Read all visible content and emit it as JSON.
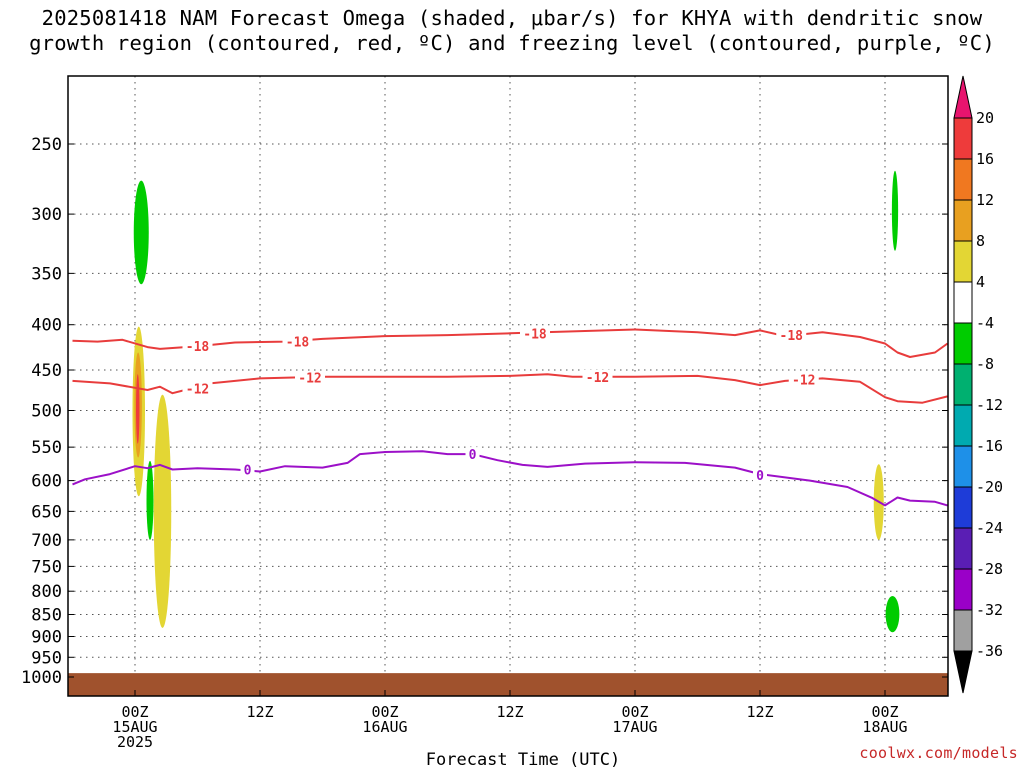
{
  "title_line1": "2025081418 NAM Forecast Omega (shaded, μbar/s) for KHYA with dendritic snow",
  "title_line2": "growth region (contoured, red, ºC) and freezing level (contoured, purple, ºC)",
  "credit": "coolwx.com/models",
  "chart_data": {
    "type": "contour",
    "xlabel": "Forecast Time (UTC)",
    "ylabel": "",
    "x_range_hours": [
      -5,
      65
    ],
    "y_axis": {
      "scale": "log-pressure",
      "units": "hPa",
      "range": [
        200,
        1000
      ],
      "ticks": [
        250,
        300,
        350,
        400,
        450,
        500,
        550,
        600,
        650,
        700,
        750,
        800,
        850,
        900,
        950,
        1000
      ]
    },
    "x_ticks": [
      {
        "hour": 0,
        "label": "00Z",
        "sub1": "15AUG",
        "sub2": "2025"
      },
      {
        "hour": 10,
        "label": "12Z",
        "sub1": "",
        "sub2": ""
      },
      {
        "hour": 20,
        "label": "00Z",
        "sub1": "16AUG",
        "sub2": ""
      },
      {
        "hour": 30,
        "label": "12Z",
        "sub1": "",
        "sub2": ""
      },
      {
        "hour": 40,
        "label": "00Z",
        "sub1": "17AUG",
        "sub2": ""
      },
      {
        "hour": 50,
        "label": "12Z",
        "sub1": "",
        "sub2": ""
      },
      {
        "hour": 60,
        "label": "00Z",
        "sub1": "18AUG",
        "sub2": ""
      }
    ],
    "grid": true,
    "colorbar": {
      "labels": [
        "20",
        "16",
        "12",
        "8",
        "4",
        "-4",
        "-8",
        "-12",
        "-16",
        "-20",
        "-24",
        "-28",
        "-32",
        "-36"
      ],
      "colors": [
        "#e8146e",
        "#ee3b3b",
        "#f07820",
        "#e8a020",
        "#e3d634",
        "#ffffff",
        "#00cc00",
        "#00b070",
        "#00aab0",
        "#1e90e8",
        "#1e3cd8",
        "#5a1eb4",
        "#9a00c8",
        "#a0a0a0",
        "#000000"
      ]
    },
    "contours": [
      {
        "label": "-18",
        "color": "#e83c3c",
        "points": [
          [
            -5,
            417
          ],
          [
            -3,
            418
          ],
          [
            -1,
            416
          ],
          [
            1,
            424
          ],
          [
            2,
            426
          ],
          [
            3,
            425
          ],
          [
            5,
            423
          ],
          [
            8,
            419
          ],
          [
            12,
            418
          ],
          [
            15,
            415
          ],
          [
            20,
            412
          ],
          [
            25,
            411
          ],
          [
            30,
            409
          ],
          [
            35,
            407
          ],
          [
            40,
            405
          ],
          [
            45,
            408
          ],
          [
            48,
            411
          ],
          [
            50,
            406
          ],
          [
            52,
            412
          ],
          [
            55,
            408
          ],
          [
            58,
            413
          ],
          [
            60,
            420
          ],
          [
            61,
            430
          ],
          [
            62,
            435
          ],
          [
            64,
            430
          ],
          [
            65,
            420
          ]
        ]
      },
      {
        "label": "-12",
        "color": "#e83c3c",
        "points": [
          [
            -5,
            463
          ],
          [
            -2,
            466
          ],
          [
            1,
            474
          ],
          [
            2,
            470
          ],
          [
            3,
            478
          ],
          [
            4,
            474
          ],
          [
            6,
            466
          ],
          [
            10,
            460
          ],
          [
            15,
            458
          ],
          [
            20,
            458
          ],
          [
            25,
            458
          ],
          [
            30,
            457
          ],
          [
            33,
            455
          ],
          [
            35,
            458
          ],
          [
            40,
            458
          ],
          [
            45,
            457
          ],
          [
            48,
            462
          ],
          [
            50,
            468
          ],
          [
            52,
            463
          ],
          [
            55,
            460
          ],
          [
            58,
            464
          ],
          [
            60,
            483
          ],
          [
            61,
            488
          ],
          [
            63,
            490
          ],
          [
            65,
            482
          ]
        ]
      },
      {
        "label": "0",
        "color": "#9c10c8",
        "points": [
          [
            -5,
            606
          ],
          [
            -4,
            598
          ],
          [
            -2,
            590
          ],
          [
            0,
            578
          ],
          [
            1,
            581
          ],
          [
            2,
            576
          ],
          [
            3,
            583
          ],
          [
            5,
            581
          ],
          [
            8,
            583
          ],
          [
            10,
            586
          ],
          [
            12,
            578
          ],
          [
            15,
            580
          ],
          [
            17,
            573
          ],
          [
            18,
            560
          ],
          [
            20,
            557
          ],
          [
            23,
            556
          ],
          [
            25,
            560
          ],
          [
            27,
            560
          ],
          [
            29,
            569
          ],
          [
            31,
            576
          ],
          [
            33,
            579
          ],
          [
            36,
            574
          ],
          [
            40,
            572
          ],
          [
            44,
            573
          ],
          [
            48,
            580
          ],
          [
            50,
            590
          ],
          [
            54,
            600
          ],
          [
            57,
            610
          ],
          [
            59,
            628
          ],
          [
            60,
            640
          ],
          [
            61,
            627
          ],
          [
            62,
            632
          ],
          [
            64,
            634
          ],
          [
            65,
            640
          ]
        ]
      },
      {
        "label": "",
        "color": "#8a4a24",
        "points": []
      }
    ],
    "labels": [
      {
        "hour": 5,
        "p": 423,
        "text": "-18"
      },
      {
        "hour": 13,
        "p": 418,
        "text": "-18"
      },
      {
        "hour": 32,
        "p": 409,
        "text": "-18"
      },
      {
        "hour": 52.5,
        "p": 411,
        "text": "-18"
      },
      {
        "hour": 5,
        "p": 472,
        "text": "-12"
      },
      {
        "hour": 14,
        "p": 459,
        "text": "-12"
      },
      {
        "hour": 37,
        "p": 458,
        "text": "-12"
      },
      {
        "hour": 53.5,
        "p": 461,
        "text": "-12"
      },
      {
        "hour": 9,
        "p": 583,
        "text": "0"
      },
      {
        "hour": 27,
        "p": 560,
        "text": "0"
      },
      {
        "hour": 50,
        "p": 591,
        "text": "0"
      }
    ],
    "omega_blobs": [
      {
        "hour": 0.5,
        "p_top": 275,
        "p_bot": 360,
        "halfwidth_h": 0.6,
        "color": "#00cc00"
      },
      {
        "hour": 60.8,
        "p_top": 268,
        "p_bot": 330,
        "halfwidth_h": 0.25,
        "color": "#00cc00"
      },
      {
        "hour": 0.3,
        "p_top": 402,
        "p_bot": 625,
        "halfwidth_h": 0.5,
        "color": "#e3d634"
      },
      {
        "hour": 0.25,
        "p_top": 430,
        "p_bot": 565,
        "halfwidth_h": 0.3,
        "color": "#e8a020"
      },
      {
        "hour": 0.22,
        "p_top": 455,
        "p_bot": 545,
        "halfwidth_h": 0.14,
        "color": "#ee3b3b"
      },
      {
        "hour": 1.2,
        "p_top": 570,
        "p_bot": 700,
        "halfwidth_h": 0.28,
        "color": "#00cc00"
      },
      {
        "hour": 2.2,
        "p_top": 480,
        "p_bot": 880,
        "halfwidth_h": 0.7,
        "color": "#e3d634"
      },
      {
        "hour": 59.5,
        "p_top": 575,
        "p_bot": 700,
        "halfwidth_h": 0.4,
        "color": "#e3d634"
      },
      {
        "hour": 60.6,
        "p_top": 810,
        "p_bot": 890,
        "halfwidth_h": 0.55,
        "color": "#00cc00"
      }
    ],
    "terrain": {
      "color": "#a0522d",
      "p_top": 990
    }
  }
}
